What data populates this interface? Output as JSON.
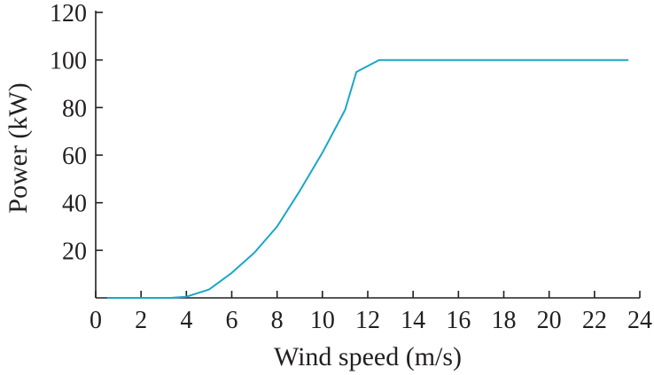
{
  "chart_data": {
    "type": "line",
    "title": "",
    "xlabel": "Wind speed (m/s)",
    "ylabel": "Power (kW)",
    "xlim": [
      0,
      24
    ],
    "ylim": [
      0,
      120
    ],
    "xticks": [
      "0",
      "2",
      "4",
      "6",
      "8",
      "10",
      "12",
      "14",
      "16",
      "18",
      "20",
      "22",
      "24"
    ],
    "yticks": [
      "20",
      "40",
      "60",
      "80",
      "100",
      "120"
    ],
    "grid": false,
    "line_color": "#1aa6c9",
    "series": [
      {
        "x": [
          0.5,
          1,
          2,
          3,
          3.3,
          4,
          5,
          6,
          7,
          8,
          9,
          10,
          11,
          11.5,
          12.5,
          13,
          14,
          16,
          18,
          20,
          22,
          23.5
        ],
        "y": [
          0,
          0,
          0,
          0,
          0,
          0.5,
          3.5,
          10.5,
          19,
          30,
          45,
          61,
          79,
          95,
          100,
          100,
          100,
          100,
          100,
          100,
          100,
          100
        ]
      }
    ]
  }
}
